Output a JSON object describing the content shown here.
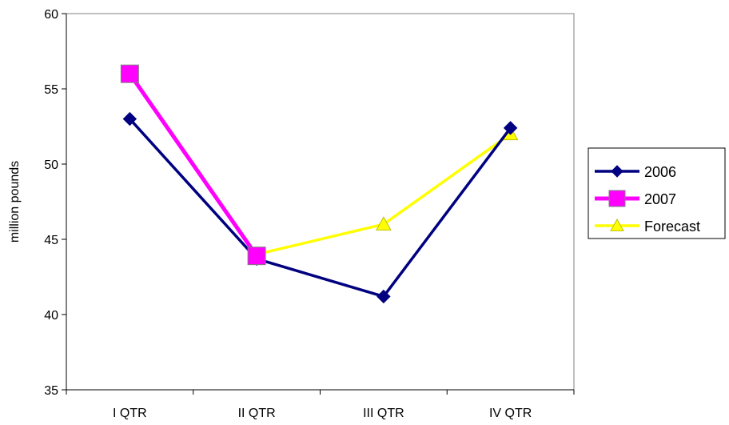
{
  "chart_data": {
    "type": "line",
    "title": "",
    "xlabel": "",
    "ylabel": "million pounds",
    "categories": [
      "I QTR",
      "II QTR",
      "III QTR",
      "IV QTR"
    ],
    "ylim": [
      35,
      60
    ],
    "yticks": [
      35,
      40,
      45,
      50,
      55,
      60
    ],
    "grid": false,
    "legend": "right",
    "series": [
      {
        "name": "2006",
        "values": [
          53,
          43.7,
          41.2,
          52.4
        ],
        "color": "#000080",
        "marker": "diamond"
      },
      {
        "name": "2007",
        "values": [
          56,
          43.9,
          null,
          null
        ],
        "color": "#FF00FF",
        "marker": "square"
      },
      {
        "name": "Forecast",
        "values": [
          null,
          44,
          46,
          52
        ],
        "color": "#FFFF00",
        "marker": "triangle"
      }
    ]
  }
}
